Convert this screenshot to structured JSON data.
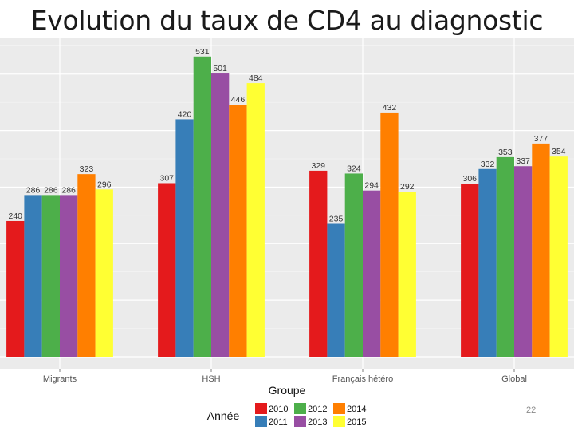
{
  "slide": {
    "title": "Evolution du taux de CD4 au diagnostic",
    "page_number": "22"
  },
  "chart_data": {
    "type": "bar",
    "title": "",
    "xlabel": "Groupe",
    "ylabel": "",
    "categories": [
      "Migrants",
      "HSH",
      "Français hétéro",
      "Global"
    ],
    "series": [
      {
        "name": "2010",
        "color": "#e41a1c",
        "values": [
          240,
          307,
          329,
          306
        ]
      },
      {
        "name": "2011",
        "color": "#377eb8",
        "values": [
          286,
          420,
          235,
          332
        ]
      },
      {
        "name": "2012",
        "color": "#4daf4a",
        "values": [
          286,
          531,
          324,
          353
        ]
      },
      {
        "name": "2013",
        "color": "#984ea3",
        "values": [
          286,
          501,
          294,
          337
        ]
      },
      {
        "name": "2014",
        "color": "#ff7f00",
        "values": [
          323,
          446,
          432,
          377
        ]
      },
      {
        "name": "2015",
        "color": "#ffff33",
        "values": [
          296,
          484,
          292,
          354
        ]
      }
    ],
    "legend": {
      "title": "Année",
      "position": "bottom"
    },
    "grid": true,
    "panel_background": "#ebebeb",
    "gridline_color": "#ffffff"
  }
}
